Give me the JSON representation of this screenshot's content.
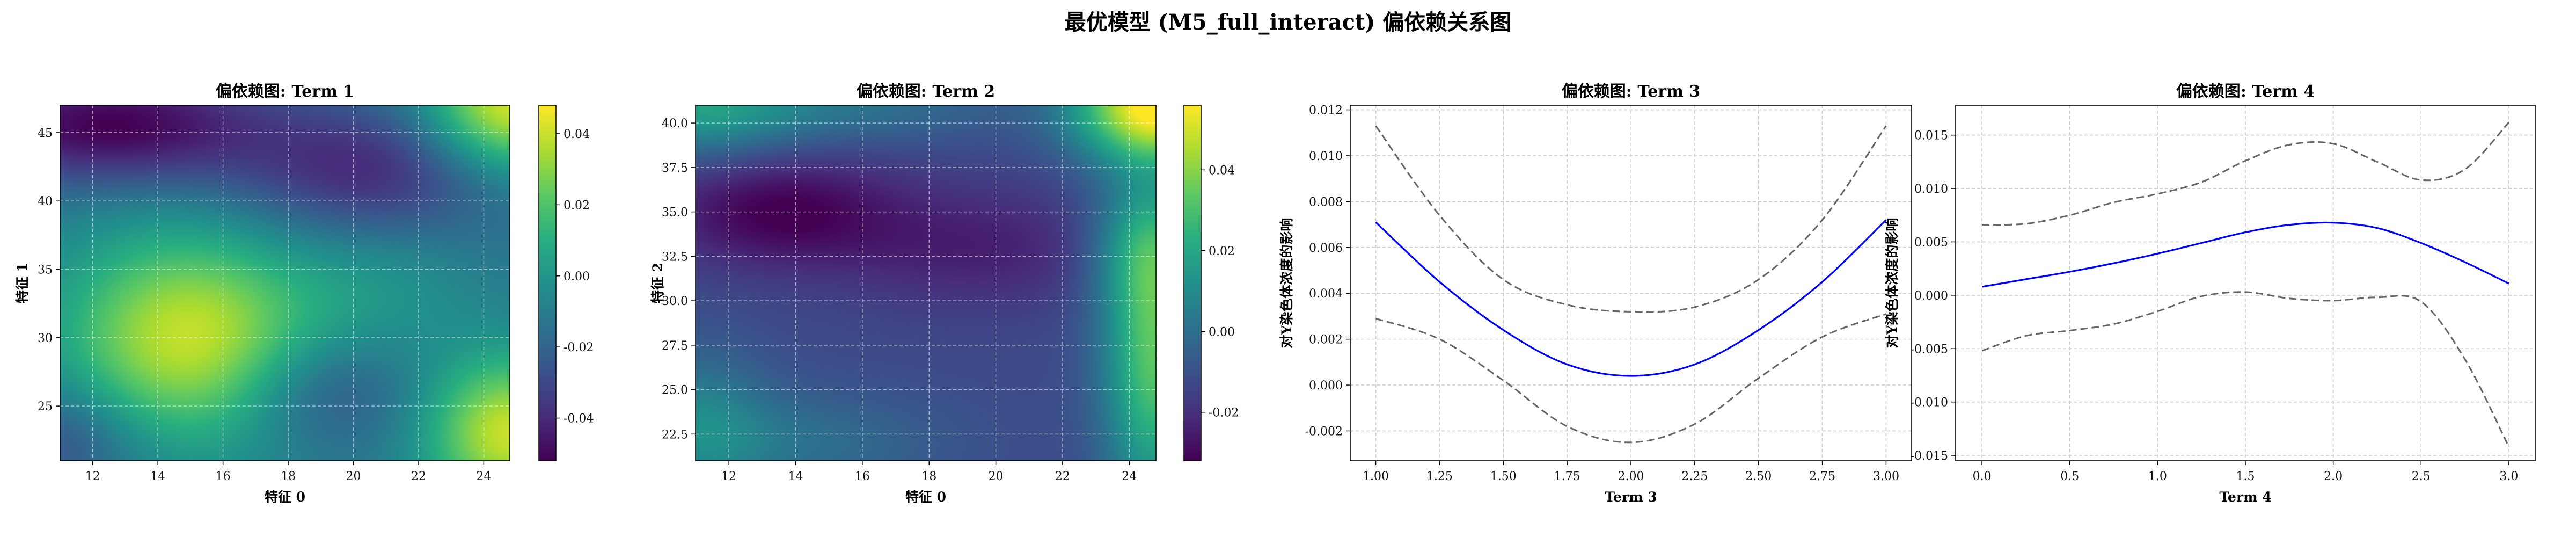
{
  "figure": {
    "suptitle": "最优模型 (M5_full_interact) 偏依赖关系图"
  },
  "colors": {
    "line": "#0000ff",
    "ci": "#666666",
    "grid": "#cccccc",
    "axes": "#000000",
    "viridis": [
      "#440154",
      "#472d7b",
      "#3b528b",
      "#2c728e",
      "#21918c",
      "#28ae80",
      "#5ec962",
      "#addc30",
      "#fde725"
    ]
  },
  "chart_data": [
    {
      "type": "heatmap",
      "title": "偏依赖图: Term 1",
      "xlabel": "特征 0",
      "ylabel": "特征 1",
      "xlim": [
        11,
        24.8
      ],
      "ylim": [
        21,
        47
      ],
      "xticks": [
        12,
        14,
        16,
        18,
        20,
        22,
        24
      ],
      "yticks": [
        25,
        30,
        35,
        40,
        45
      ],
      "grid": true,
      "colorbar": {
        "vmin": -0.052,
        "vmax": 0.048,
        "ticks": [
          -0.04,
          -0.02,
          0.0,
          0.02,
          0.04
        ]
      },
      "surface": {
        "base": -0.012,
        "bumps": [
          {
            "x": 15,
            "y": 30,
            "a": 0.052,
            "sx": 2.8,
            "sy": 5.5
          },
          {
            "x": 24.8,
            "y": 47,
            "a": 0.056,
            "sx": 1.8,
            "sy": 3.5
          },
          {
            "x": 24.8,
            "y": 23,
            "a": 0.052,
            "sx": 1.8,
            "sy": 4.0
          },
          {
            "x": 12.5,
            "y": 45.5,
            "a": -0.04,
            "sx": 3.5,
            "sy": 3.0
          },
          {
            "x": 20.5,
            "y": 42,
            "a": -0.028,
            "sx": 3.0,
            "sy": 3.5
          },
          {
            "x": 19,
            "y": 26,
            "a": -0.018,
            "sx": 2.0,
            "sy": 3.0
          },
          {
            "x": 11,
            "y": 22.5,
            "a": -0.018,
            "sx": 1.8,
            "sy": 3.0
          },
          {
            "x": 21,
            "y": 34,
            "a": 0.01,
            "sx": 2.0,
            "sy": 4.0
          }
        ]
      }
    },
    {
      "type": "heatmap",
      "title": "偏依赖图: Term 2",
      "xlabel": "特征 0",
      "ylabel": "特征 2",
      "xlim": [
        11,
        24.8
      ],
      "ylim": [
        21,
        41
      ],
      "xticks": [
        12,
        14,
        16,
        18,
        20,
        22,
        24
      ],
      "yticks": [
        22.5,
        25.0,
        27.5,
        30.0,
        32.5,
        35.0,
        37.5,
        40.0
      ],
      "grid": true,
      "colorbar": {
        "vmin": -0.032,
        "vmax": 0.056,
        "ticks": [
          -0.02,
          0.0,
          0.02,
          0.04
        ]
      },
      "surface": {
        "base": -0.012,
        "bumps": [
          {
            "x": 13.5,
            "y": 35,
            "a": -0.02,
            "sx": 2.5,
            "sy": 2.2
          },
          {
            "x": 19.5,
            "y": 33,
            "a": -0.012,
            "sx": 3.0,
            "sy": 2.5
          },
          {
            "x": 24.8,
            "y": 41,
            "a": 0.07,
            "sx": 1.7,
            "sy": 2.2
          },
          {
            "x": 24.8,
            "y": 27,
            "a": 0.045,
            "sx": 1.1,
            "sy": 6.0
          },
          {
            "x": 11,
            "y": 41,
            "a": 0.028,
            "sx": 2.2,
            "sy": 2.0
          },
          {
            "x": 16,
            "y": 41,
            "a": 0.012,
            "sx": 3.0,
            "sy": 1.5
          },
          {
            "x": 11,
            "y": 23,
            "a": 0.018,
            "sx": 1.5,
            "sy": 3.0
          },
          {
            "x": 14,
            "y": 22,
            "a": 0.012,
            "sx": 3.0,
            "sy": 2.0
          },
          {
            "x": 24.5,
            "y": 33,
            "a": 0.02,
            "sx": 1.2,
            "sy": 2.5
          }
        ]
      }
    },
    {
      "type": "line",
      "title": "偏依赖图: Term 3",
      "xlabel": "Term 3",
      "ylabel": "对Y染色体浓度的影响",
      "xlim": [
        0.9,
        3.1
      ],
      "ylim": [
        -0.0033,
        0.0122
      ],
      "xticks": [
        1.0,
        1.25,
        1.5,
        1.75,
        2.0,
        2.25,
        2.5,
        2.75,
        3.0
      ],
      "xticklabels": [
        "1.00",
        "1.25",
        "1.50",
        "1.75",
        "2.00",
        "2.25",
        "2.50",
        "2.75",
        "3.00"
      ],
      "yticks": [
        -0.002,
        0.0,
        0.002,
        0.004,
        0.006,
        0.008,
        0.01,
        0.012
      ],
      "yticklabels": [
        "-0.002",
        "0.000",
        "0.002",
        "0.004",
        "0.006",
        "0.008",
        "0.010",
        "0.012"
      ],
      "grid": true,
      "x": [
        1.0,
        1.25,
        1.5,
        1.75,
        2.0,
        2.25,
        2.5,
        2.75,
        3.0
      ],
      "series": [
        {
          "role": "estimate",
          "values": [
            0.0071,
            0.0045,
            0.0024,
            0.0009,
            0.0004,
            0.0009,
            0.0024,
            0.0045,
            0.0072
          ]
        },
        {
          "role": "ci-upper",
          "values": [
            0.0113,
            0.0074,
            0.0046,
            0.0035,
            0.0032,
            0.0034,
            0.0046,
            0.0072,
            0.0113
          ]
        },
        {
          "role": "ci-lower",
          "values": [
            0.0029,
            0.002,
            0.0002,
            -0.0018,
            -0.0025,
            -0.0017,
            0.0003,
            0.0021,
            0.0031
          ]
        }
      ]
    },
    {
      "type": "line",
      "title": "偏依赖图: Term 4",
      "xlabel": "Term 4",
      "ylabel": "对Y染色体浓度的影响",
      "xlim": [
        -0.15,
        3.15
      ],
      "ylim": [
        -0.0155,
        0.0178
      ],
      "xticks": [
        0.0,
        0.5,
        1.0,
        1.5,
        2.0,
        2.5,
        3.0
      ],
      "xticklabels": [
        "0.0",
        "0.5",
        "1.0",
        "1.5",
        "2.0",
        "2.5",
        "3.0"
      ],
      "yticks": [
        -0.015,
        -0.01,
        -0.005,
        0.0,
        0.005,
        0.01,
        0.015
      ],
      "yticklabels": [
        "-0.015",
        "-0.010",
        "-0.005",
        "0.000",
        "0.005",
        "0.010",
        "0.015"
      ],
      "grid": true,
      "x": [
        0.0,
        0.25,
        0.5,
        0.75,
        1.0,
        1.25,
        1.5,
        1.75,
        2.0,
        2.25,
        2.5,
        2.75,
        3.0
      ],
      "series": [
        {
          "role": "estimate",
          "values": [
            0.0008,
            0.0015,
            0.0022,
            0.003,
            0.0039,
            0.0049,
            0.0059,
            0.0066,
            0.0068,
            0.0063,
            0.0049,
            0.0031,
            0.0011
          ]
        },
        {
          "role": "ci-upper",
          "values": [
            0.0066,
            0.0067,
            0.0075,
            0.0087,
            0.0095,
            0.0106,
            0.0126,
            0.0141,
            0.0142,
            0.0125,
            0.0108,
            0.0118,
            0.0162
          ]
        },
        {
          "role": "ci-lower",
          "values": [
            -0.0052,
            -0.0038,
            -0.0033,
            -0.0027,
            -0.0015,
            -0.0001,
            0.0003,
            -0.0003,
            -0.0005,
            -0.0002,
            -0.0006,
            -0.006,
            -0.0142
          ]
        }
      ]
    }
  ]
}
